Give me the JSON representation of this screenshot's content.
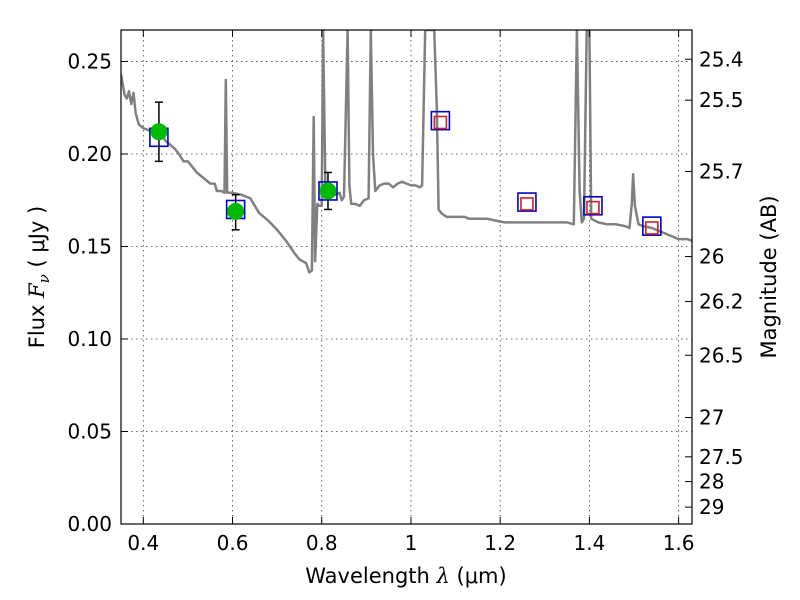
{
  "chart_data": {
    "type": "scatter",
    "xlabel": {
      "prefix": "Wavelength  ",
      "symbol": "λ",
      "suffix": " (μm)"
    },
    "ylabel": {
      "prefix": "Flux  ",
      "symbol": "F",
      "subscript": "ν",
      "suffix": "  ( μJy )"
    },
    "ylabel_right": "Magnitude (AB)",
    "xlim": [
      0.35,
      1.63
    ],
    "ylim": [
      0.0,
      0.267
    ],
    "grid": true,
    "x_ticks": [
      {
        "value": 0.4,
        "label": "0.4"
      },
      {
        "value": 0.6,
        "label": "0.6"
      },
      {
        "value": 0.8,
        "label": "0.8"
      },
      {
        "value": 1.0,
        "label": "1"
      },
      {
        "value": 1.2,
        "label": "1.2"
      },
      {
        "value": 1.4,
        "label": "1.4"
      },
      {
        "value": 1.6,
        "label": "1.6"
      }
    ],
    "y_ticks": [
      {
        "value": 0.0,
        "label": "0.00"
      },
      {
        "value": 0.05,
        "label": "0.05"
      },
      {
        "value": 0.1,
        "label": "0.10"
      },
      {
        "value": 0.15,
        "label": "0.15"
      },
      {
        "value": 0.2,
        "label": "0.20"
      },
      {
        "value": 0.25,
        "label": "0.25"
      }
    ],
    "right_ticks": [
      {
        "value": 25.4,
        "label": "25.4"
      },
      {
        "value": 25.5,
        "label": "25.5"
      },
      {
        "value": 25.7,
        "label": "25.7"
      },
      {
        "value": 26.0,
        "label": "26"
      },
      {
        "value": 26.2,
        "label": "26.2"
      },
      {
        "value": 26.5,
        "label": "26.5"
      },
      {
        "value": 27.0,
        "label": "27"
      },
      {
        "value": 27.5,
        "label": "27.5"
      },
      {
        "value": 28.0,
        "label": "28"
      },
      {
        "value": 29.0,
        "label": "29"
      }
    ],
    "series": [
      {
        "kind": "line",
        "color": "#808080",
        "points": [
          [
            0.35,
            0.243
          ],
          [
            0.358,
            0.232
          ],
          [
            0.363,
            0.23
          ],
          [
            0.368,
            0.234
          ],
          [
            0.373,
            0.227
          ],
          [
            0.378,
            0.233
          ],
          [
            0.383,
            0.222
          ],
          [
            0.39,
            0.216
          ],
          [
            0.4,
            0.214
          ],
          [
            0.41,
            0.213
          ],
          [
            0.42,
            0.212
          ],
          [
            0.43,
            0.213
          ],
          [
            0.44,
            0.212
          ],
          [
            0.45,
            0.207
          ],
          [
            0.46,
            0.205
          ],
          [
            0.47,
            0.203
          ],
          [
            0.48,
            0.2
          ],
          [
            0.49,
            0.196
          ],
          [
            0.5,
            0.196
          ],
          [
            0.51,
            0.193
          ],
          [
            0.52,
            0.19
          ],
          [
            0.53,
            0.188
          ],
          [
            0.54,
            0.186
          ],
          [
            0.55,
            0.184
          ],
          [
            0.56,
            0.184
          ],
          [
            0.565,
            0.18
          ],
          [
            0.575,
            0.18
          ],
          [
            0.582,
            0.179
          ],
          [
            0.585,
            0.24
          ],
          [
            0.588,
            0.179
          ],
          [
            0.6,
            0.179
          ],
          [
            0.62,
            0.178
          ],
          [
            0.64,
            0.176
          ],
          [
            0.65,
            0.172
          ],
          [
            0.66,
            0.168
          ],
          [
            0.68,
            0.164
          ],
          [
            0.7,
            0.159
          ],
          [
            0.72,
            0.153
          ],
          [
            0.74,
            0.146
          ],
          [
            0.75,
            0.143
          ],
          [
            0.765,
            0.141
          ],
          [
            0.772,
            0.136
          ],
          [
            0.778,
            0.137
          ],
          [
            0.782,
            0.22
          ],
          [
            0.785,
            0.142
          ],
          [
            0.79,
            0.173
          ],
          [
            0.795,
            0.172
          ],
          [
            0.8,
            0.172
          ],
          [
            0.803,
            0.267
          ],
          [
            0.808,
            0.185
          ],
          [
            0.812,
            0.18
          ],
          [
            0.82,
            0.18
          ],
          [
            0.83,
            0.178
          ],
          [
            0.84,
            0.179
          ],
          [
            0.845,
            0.175
          ],
          [
            0.85,
            0.177
          ],
          [
            0.858,
            0.267
          ],
          [
            0.862,
            0.183
          ],
          [
            0.866,
            0.173
          ],
          [
            0.875,
            0.173
          ],
          [
            0.885,
            0.172
          ],
          [
            0.895,
            0.175
          ],
          [
            0.905,
            0.176
          ],
          [
            0.91,
            0.267
          ],
          [
            0.915,
            0.2
          ],
          [
            0.92,
            0.18
          ],
          [
            0.93,
            0.183
          ],
          [
            0.94,
            0.184
          ],
          [
            0.95,
            0.184
          ],
          [
            0.96,
            0.182
          ],
          [
            0.97,
            0.184
          ],
          [
            0.98,
            0.185
          ],
          [
            0.99,
            0.184
          ],
          [
            1.0,
            0.183
          ],
          [
            1.01,
            0.183
          ],
          [
            1.02,
            0.182
          ],
          [
            1.025,
            0.183
          ],
          [
            1.032,
            0.267
          ],
          [
            1.04,
            0.267
          ],
          [
            1.052,
            0.267
          ],
          [
            1.058,
            0.225
          ],
          [
            1.062,
            0.17
          ],
          [
            1.068,
            0.168
          ],
          [
            1.08,
            0.166
          ],
          [
            1.1,
            0.166
          ],
          [
            1.12,
            0.166
          ],
          [
            1.13,
            0.165
          ],
          [
            1.15,
            0.165
          ],
          [
            1.17,
            0.165
          ],
          [
            1.19,
            0.164
          ],
          [
            1.21,
            0.163
          ],
          [
            1.23,
            0.163
          ],
          [
            1.25,
            0.163
          ],
          [
            1.27,
            0.163
          ],
          [
            1.29,
            0.163
          ],
          [
            1.31,
            0.163
          ],
          [
            1.33,
            0.163
          ],
          [
            1.35,
            0.163
          ],
          [
            1.365,
            0.162
          ],
          [
            1.372,
            0.267
          ],
          [
            1.378,
            0.18
          ],
          [
            1.383,
            0.163
          ],
          [
            1.388,
            0.165
          ],
          [
            1.394,
            0.267
          ],
          [
            1.4,
            0.267
          ],
          [
            1.404,
            0.165
          ],
          [
            1.42,
            0.163
          ],
          [
            1.44,
            0.162
          ],
          [
            1.46,
            0.162
          ],
          [
            1.48,
            0.161
          ],
          [
            1.49,
            0.16
          ],
          [
            1.495,
            0.173
          ],
          [
            1.498,
            0.189
          ],
          [
            1.502,
            0.172
          ],
          [
            1.51,
            0.162
          ],
          [
            1.52,
            0.161
          ],
          [
            1.54,
            0.16
          ],
          [
            1.56,
            0.158
          ],
          [
            1.58,
            0.156
          ],
          [
            1.6,
            0.154
          ],
          [
            1.62,
            0.154
          ],
          [
            1.63,
            0.153
          ]
        ]
      },
      {
        "kind": "markers",
        "marker": "square",
        "color": "#0000cc",
        "points": [
          [
            0.435,
            0.209
          ],
          [
            0.607,
            0.17
          ],
          [
            0.814,
            0.18
          ],
          [
            1.066,
            0.218
          ],
          [
            1.26,
            0.174
          ],
          [
            1.408,
            0.172
          ],
          [
            1.54,
            0.161
          ]
        ]
      },
      {
        "kind": "markers",
        "marker": "square",
        "color": "#cc2222",
        "points": [
          [
            1.066,
            0.217
          ],
          [
            1.26,
            0.173
          ],
          [
            1.408,
            0.171
          ],
          [
            1.54,
            0.16
          ]
        ]
      },
      {
        "kind": "errorbar",
        "marker": "circle",
        "color": "#00bb00",
        "points": [
          {
            "x": 0.435,
            "y": 0.212,
            "ylo": 0.196,
            "yhi": 0.228
          },
          {
            "x": 0.607,
            "y": 0.169,
            "ylo": 0.159,
            "yhi": 0.178
          },
          {
            "x": 0.814,
            "y": 0.18,
            "ylo": 0.17,
            "yhi": 0.19
          }
        ]
      }
    ]
  }
}
